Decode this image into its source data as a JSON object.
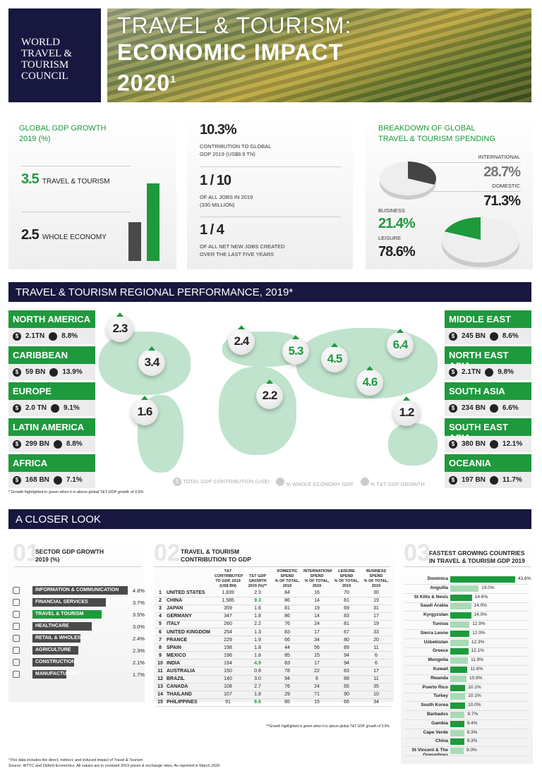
{
  "header": {
    "logo_lines": [
      "WORLD",
      "TRAVEL &",
      "TOURISM",
      "COUNCIL"
    ],
    "title_line1": "TRAVEL & TOURISM:",
    "title_line2": "ECONOMIC IMPACT",
    "title_year": "2020",
    "title_sup": "1"
  },
  "gdp_growth": {
    "title_l1": "GLOBAL GDP GROWTH",
    "title_l2": "2019 (%)",
    "tt_value": "3.5",
    "tt_label": "TRAVEL & TOURISM",
    "we_value": "2.5",
    "we_label": "WHOLE ECONOMY"
  },
  "key_stats": [
    {
      "value": "10.3%",
      "l1": "CONTRIBUTION TO GLOBAL",
      "l2": "GDP 2019 (US$8.9 TN)"
    },
    {
      "value": "1 / 10",
      "l1": "OF ALL JOBS IN 2019",
      "l2": "(330 MILLION)"
    },
    {
      "value": "1 / 4",
      "l1": "OF ALL NET NEW JOBS CREATED",
      "l2": "OVER THE LAST FIVE YEARS"
    }
  ],
  "spending": {
    "title_l1": "BREAKDOWN OF GLOBAL",
    "title_l2": "TRAVEL & TOURISM SPENDING",
    "international_label": "INTERNATIONAL",
    "international": "28.7%",
    "domestic_label": "DOMESTIC",
    "domestic": "71.3%",
    "business_label": "BUSINESS",
    "business": "21.4%",
    "leisure_label": "LEISURE",
    "leisure": "78.6%"
  },
  "regional": {
    "banner": "TRAVEL & TOURISM REGIONAL PERFORMANCE, 2019*",
    "left": [
      {
        "name": "NORTH AMERICA",
        "gdp": "2.1TN",
        "pct": "8.8%"
      },
      {
        "name": "CARIBBEAN",
        "gdp": "59 BN",
        "pct": "13.9%"
      },
      {
        "name": "EUROPE",
        "gdp": "2.0 TN",
        "pct": "9.1%"
      },
      {
        "name": "LATIN AMERICA",
        "gdp": "299 BN",
        "pct": "8.8%"
      },
      {
        "name": "AFRICA",
        "gdp": "168 BN",
        "pct": "7.1%"
      }
    ],
    "right": [
      {
        "name": "MIDDLE EAST",
        "gdp": "245 BN",
        "pct": "8.6%"
      },
      {
        "name": "NORTH EAST ASIA",
        "gdp": "2.1TN",
        "pct": "9.8%"
      },
      {
        "name": "SOUTH ASIA",
        "gdp": "234 BN",
        "pct": "6.6%"
      },
      {
        "name": "SOUTH EAST ASIA",
        "gdp": "380 BN",
        "pct": "12.1%"
      },
      {
        "name": "OCEANIA",
        "gdp": "197 BN",
        "pct": "11.7%"
      }
    ],
    "pins": [
      {
        "v": "2.3",
        "green": false
      },
      {
        "v": "3.4",
        "green": false
      },
      {
        "v": "1.6",
        "green": false
      },
      {
        "v": "2.4",
        "green": false
      },
      {
        "v": "2.2",
        "green": false
      },
      {
        "v": "5.3",
        "green": true
      },
      {
        "v": "4.5",
        "green": true
      },
      {
        "v": "4.6",
        "green": true
      },
      {
        "v": "6.4",
        "green": true
      },
      {
        "v": "1.2",
        "green": false
      }
    ],
    "legend": [
      "TOTAL GDP CONTRIBUTION (US$)",
      "% WHOLE ECONOMY GDP",
      "% T&T GDP GROWTH"
    ],
    "footnote": "* Growth highlighted in green when it is above global T&T GDP growth of 3.5%"
  },
  "closer": {
    "banner": "A CLOSER LOOK"
  },
  "colors": {
    "green": "#1e9a3d",
    "light_green": "#a8dbb6",
    "navy": "#17173f",
    "dark_gray": "#4a4a4a"
  },
  "chart_data": [
    {
      "type": "bar",
      "title": "SECTOR GDP GROWTH 2019 (%)",
      "number": "01",
      "categories": [
        "INFORMATION & COMMUNICATION",
        "FINANCIAL SERVICES",
        "TRAVEL & TOURISM",
        "HEALTHCARE",
        "RETAIL & WHOLESALE",
        "AGRICULTURE",
        "CONSTRUCTION",
        "MANUFACTURING"
      ],
      "values": [
        4.8,
        3.7,
        3.5,
        3.0,
        2.4,
        2.3,
        2.1,
        1.7
      ],
      "labels": [
        "4.8%",
        "3.7%",
        "3.5%",
        "3.0%",
        "2.4%",
        "2.3%",
        "2.1%",
        "1.7%"
      ],
      "icons": [
        "antenna-icon",
        "finance-icon",
        "globe-icon",
        "medical-icon",
        "cart-icon",
        "plant-icon",
        "crane-icon",
        "factory-icon"
      ],
      "highlight": "TRAVEL & TOURISM"
    },
    {
      "type": "table",
      "title": "TRAVEL & TOURISM CONTRIBUTION TO GDP",
      "number": "02",
      "columns": [
        [
          "T&T CONTRIBUTION",
          "TO GDP, 2019",
          "(US$ BN)"
        ],
        [
          "T&T GDP",
          "GROWTH",
          "2019 (%)**"
        ],
        [
          "DOMESTIC",
          "SPEND",
          "% OF TOTAL, 2019"
        ],
        [
          "INTERNATIONAL",
          "SPEND",
          "% OF TOTAL, 2019"
        ],
        [
          "LEISURE",
          "SPEND",
          "% OF TOTAL, 2019"
        ],
        [
          "BUSINESS",
          "SPEND",
          "% OF TOTAL, 2019"
        ]
      ],
      "rows": [
        [
          "1",
          "UNITED STATES",
          "1,839",
          "2.3",
          "84",
          "16",
          "70",
          "30"
        ],
        [
          "2",
          "CHINA",
          "1,585",
          "9.3",
          "86",
          "14",
          "81",
          "19"
        ],
        [
          "3",
          "JAPAN",
          "359",
          "1.6",
          "81",
          "19",
          "69",
          "31"
        ],
        [
          "4",
          "GERMANY",
          "347",
          "1.8",
          "86",
          "14",
          "83",
          "17"
        ],
        [
          "5",
          "ITALY",
          "260",
          "2.2",
          "76",
          "24",
          "81",
          "19"
        ],
        [
          "6",
          "UNITED KINGDOM",
          "254",
          "1.3",
          "83",
          "17",
          "67",
          "33"
        ],
        [
          "7",
          "FRANCE",
          "229",
          "1.9",
          "66",
          "34",
          "80",
          "20"
        ],
        [
          "8",
          "SPAIN",
          "198",
          "1.8",
          "44",
          "56",
          "89",
          "11"
        ],
        [
          "9",
          "MEXICO",
          "196",
          "1.8",
          "85",
          "15",
          "94",
          "6"
        ],
        [
          "10",
          "INDIA",
          "194",
          "4.9",
          "83",
          "17",
          "94",
          "6"
        ],
        [
          "11",
          "AUSTRALIA",
          "150",
          "0.8",
          "78",
          "22",
          "83",
          "17"
        ],
        [
          "12",
          "BRAZIL",
          "140",
          "3.0",
          "94",
          "6",
          "89",
          "11"
        ],
        [
          "13",
          "CANADA",
          "108",
          "2.7",
          "76",
          "24",
          "65",
          "35"
        ],
        [
          "14",
          "THAILAND",
          "107",
          "1.8",
          "29",
          "71",
          "90",
          "10"
        ],
        [
          "15",
          "PHILIPPINES",
          "91",
          "8.6",
          "85",
          "15",
          "66",
          "34"
        ]
      ],
      "green_rows": [
        "2",
        "10",
        "15"
      ],
      "note": "**Growth highlighted in green when it is above global T&T GDP growth of 3.5%"
    },
    {
      "type": "bar",
      "title": "FASTEST GROWING COUNTRIES IN TRAVEL & TOURISM GDP 2019",
      "number": "03",
      "categories": [
        "Dominica",
        "Anguilla",
        "St Kitts & Nevis",
        "Saudi Arabia",
        "Kyrgyzstan",
        "Tunisia",
        "Sierra Leone",
        "Uzbekistan",
        "Greece",
        "Mongolia",
        "Kuwait",
        "Rwanda",
        "Puerto Rico",
        "Turkey",
        "South Korea",
        "Barbados",
        "Gambia",
        "Cape Verde",
        "China",
        "St Vincent & The Grenadines"
      ],
      "values": [
        43.6,
        19.0,
        14.6,
        14.0,
        14.0,
        12.9,
        12.9,
        12.3,
        12.1,
        11.9,
        11.6,
        10.9,
        10.1,
        10.1,
        10.0,
        9.7,
        9.4,
        9.3,
        9.3,
        9.0
      ],
      "labels": [
        "43.6%",
        "19.0%",
        "14.6%",
        "14.0%",
        "14.0%",
        "12.9%",
        "12.9%",
        "12.3%",
        "12.1%",
        "11.9%",
        "11.6%",
        "10.9%",
        "10.1%",
        "10.1%",
        "10.0%",
        "9.7%",
        "9.4%",
        "9.3%",
        "9.3%",
        "9.0%"
      ]
    }
  ],
  "footer": {
    "l1": "¹This data includes the direct, indirect, and induced impact of Travel & Tourism",
    "l2": "Source: WTTC and Oxford Economics. All values are in constant 2019 prices & exchange rates. As reported in March 2020"
  }
}
